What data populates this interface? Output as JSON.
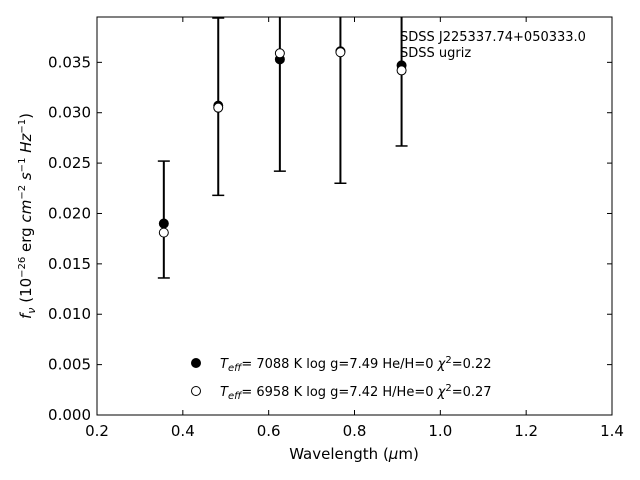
{
  "chart_data": {
    "type": "scatter",
    "title": "",
    "xlabel": "Wavelength (μm)",
    "ylabel": "fν (10⁻²⁶ erg cm⁻² s⁻¹ Hz⁻¹)",
    "xlim": [
      0.2,
      1.4
    ],
    "ylim": [
      0.0,
      0.0395
    ],
    "x_ticks": [
      0.2,
      0.4,
      0.6,
      0.8,
      1.0,
      1.2,
      1.4
    ],
    "x_tick_labels": [
      "0.2",
      "0.4",
      "0.6",
      "0.8",
      "1.0",
      "1.2",
      "1.4"
    ],
    "y_ticks": [
      0.0,
      0.005,
      0.01,
      0.015,
      0.02,
      0.025,
      0.03,
      0.035
    ],
    "y_tick_labels": [
      "0.000",
      "0.005",
      "0.010",
      "0.015",
      "0.020",
      "0.025",
      "0.030",
      "0.035"
    ],
    "grid": false,
    "legend_position": "bottom-center",
    "annotations": [
      "SDSS J225337.74+050333.0",
      "SDSS ugriz"
    ],
    "observed": {
      "x": [
        0.3557,
        0.4825,
        0.6261,
        0.7672,
        0.9097
      ],
      "y": [
        0.0194,
        0.0306,
        0.0354,
        0.0363,
        0.0345
      ],
      "yerr": [
        0.0058,
        0.0088,
        0.0112,
        0.0133,
        0.0078
      ]
    },
    "series": [
      {
        "name": "Teff= 7088 K log g=7.49 He/H=0 χ²=0.22",
        "marker": "filled-circle",
        "color": "#000000",
        "x": [
          0.3557,
          0.4825,
          0.6261,
          0.7672,
          0.9097
        ],
        "y": [
          0.019,
          0.0307,
          0.0353,
          0.0361,
          0.0347
        ]
      },
      {
        "name": "Teff= 6958 K log g=7.42 H/He=0 χ²=0.27",
        "marker": "open-circle",
        "color": "#000000",
        "x": [
          0.3557,
          0.4825,
          0.6261,
          0.7672,
          0.9097
        ],
        "y": [
          0.0181,
          0.0305,
          0.0359,
          0.036,
          0.0342
        ]
      }
    ]
  }
}
